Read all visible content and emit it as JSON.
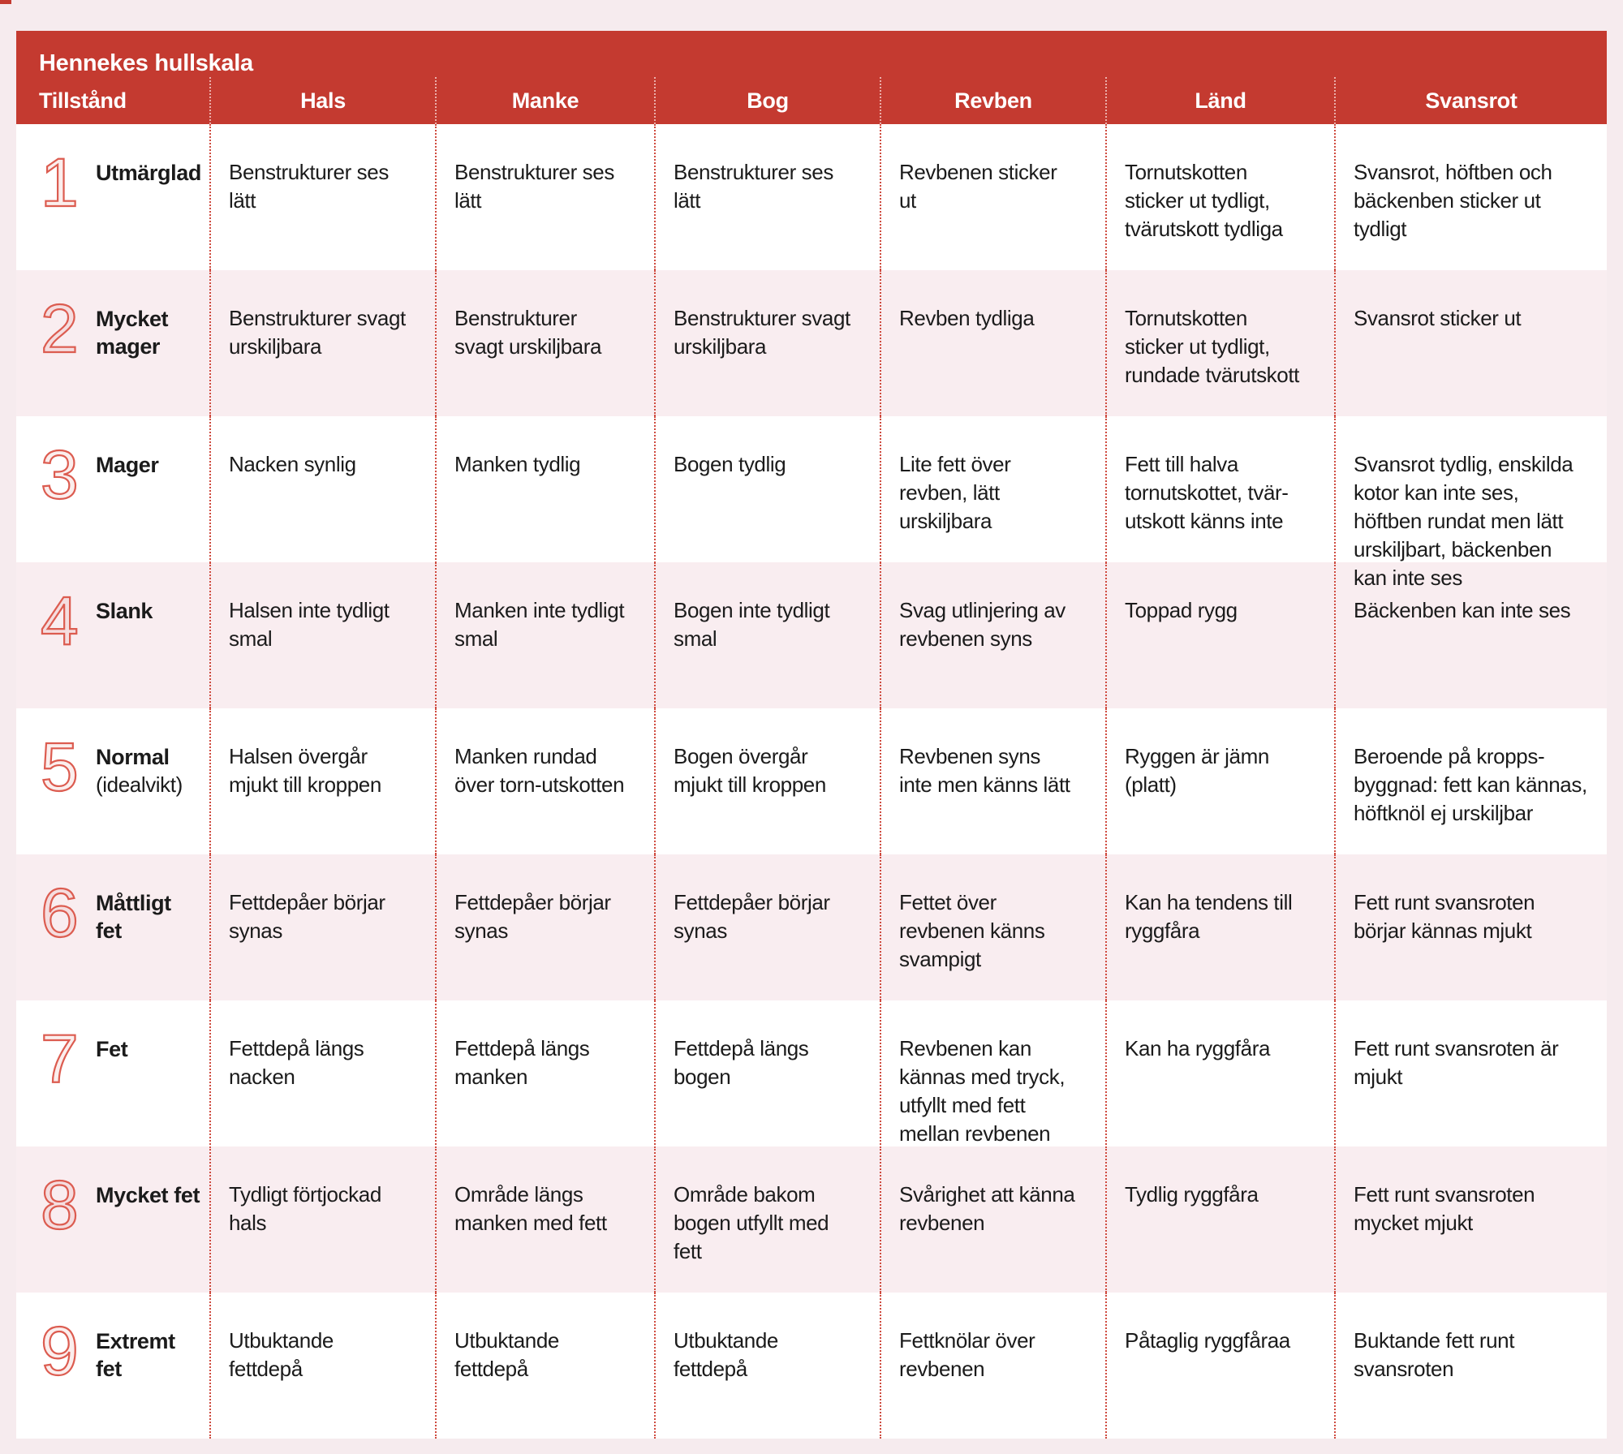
{
  "title": "Hennekes hullskala",
  "colors": {
    "header_red": "#c43a30",
    "stripe_pink": "#f9edf0",
    "page_pink": "#f6ebee",
    "dotted_line_red": "#cf4a3e",
    "number_red": "#dc5c50",
    "text_dark": "#1b1b1b"
  },
  "chart_data": {
    "type": "table",
    "title": "Hennekes hullskala",
    "columns": [
      "Tillstånd",
      "Hals",
      "Manke",
      "Bog",
      "Revben",
      "Länd",
      "Svansrot"
    ],
    "rows": [
      {
        "num": "1",
        "name": "Utmärglad",
        "subname": "",
        "cells": [
          "Benstrukturer ses lätt",
          "Benstrukturer ses lätt",
          "Benstrukturer ses lätt",
          "Revbenen sticker ut",
          "Tornutskotten sticker ut tydligt, tvärutskott tydliga",
          "Svansrot, höftben och bäckenben sticker ut tydligt"
        ]
      },
      {
        "num": "2",
        "name": "Mycket mager",
        "subname": "",
        "cells": [
          "Benstrukturer svagt urskiljbara",
          "Benstrukturer svagt urskiljbara",
          "Benstrukturer svagt urskiljbara",
          "Revben tydliga",
          "Tornutskotten sticker ut tydligt, rundade tvärutskott",
          "Svansrot sticker ut"
        ]
      },
      {
        "num": "3",
        "name": "Mager",
        "subname": "",
        "cells": [
          "Nacken synlig",
          "Manken tydlig",
          "Bogen tydlig",
          "Lite fett över revben, lätt urskiljbara",
          "Fett till halva tornutskottet, tvär-utskott känns inte",
          "Svansrot tydlig, enskilda kotor kan inte ses, höftben rundat men lätt urskiljbart, bäckenben kan inte ses"
        ]
      },
      {
        "num": "4",
        "name": "Slank",
        "subname": "",
        "cells": [
          "Halsen inte tydligt smal",
          "Manken inte tydligt smal",
          "Bogen inte tydligt smal",
          "Svag utlinjering av revbenen syns",
          "Toppad rygg",
          "Bäckenben kan inte ses"
        ]
      },
      {
        "num": "5",
        "name": "Normal",
        "subname": "(idealvikt)",
        "cells": [
          "Halsen övergår mjukt till kroppen",
          "Manken rundad över torn-utskotten",
          "Bogen övergår mjukt till kroppen",
          "Revbenen syns inte men känns lätt",
          "Ryggen är jämn (platt)",
          "Beroende på kropps-byggnad: fett kan kännas, höftknöl ej urskiljbar"
        ]
      },
      {
        "num": "6",
        "name": "Måttligt fet",
        "subname": "",
        "cells": [
          "Fettdepåer börjar synas",
          "Fettdepåer börjar synas",
          "Fettdepåer börjar synas",
          "Fettet över revbenen känns svampigt",
          "Kan ha tendens till ryggfåra",
          "Fett runt svansroten börjar kännas mjukt"
        ]
      },
      {
        "num": "7",
        "name": "Fet",
        "subname": "",
        "cells": [
          "Fettdepå längs nacken",
          "Fettdepå längs manken",
          "Fettdepå längs bogen",
          "Revbenen kan kännas med tryck, utfyllt med fett mellan revbenen",
          "Kan ha ryggfåra",
          "Fett runt svansroten är mjukt"
        ]
      },
      {
        "num": "8",
        "name": "Mycket fet",
        "subname": "",
        "cells": [
          "Tydligt förtjockad hals",
          "Område längs manken med fett",
          "Område bakom bogen utfyllt med fett",
          "Svårighet att känna revbenen",
          "Tydlig ryggfåra",
          "Fett runt svansroten mycket mjukt"
        ]
      },
      {
        "num": "9",
        "name": "Extremt fet",
        "subname": "",
        "cells": [
          "Utbuktande fettdepå",
          "Utbuktande fettdepå",
          "Utbuktande fettdepå",
          "Fettknölar över revbenen",
          "Påtaglig ryggfåraa",
          "Buktande fett runt svansroten"
        ]
      }
    ]
  }
}
